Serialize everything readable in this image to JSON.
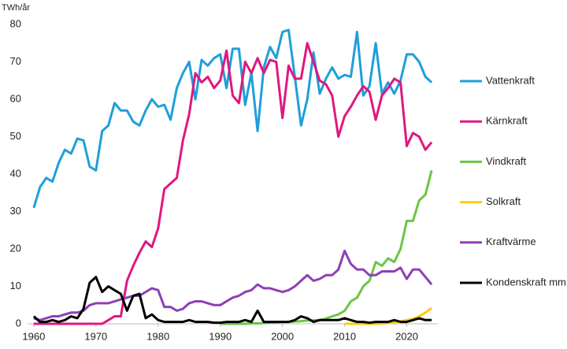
{
  "chart_data": {
    "type": "line",
    "y_label": "TWh/år",
    "x": [
      1960,
      1961,
      1962,
      1963,
      1964,
      1965,
      1966,
      1967,
      1968,
      1969,
      1970,
      1971,
      1972,
      1973,
      1974,
      1975,
      1976,
      1977,
      1978,
      1979,
      1980,
      1981,
      1982,
      1983,
      1984,
      1985,
      1986,
      1987,
      1988,
      1989,
      1990,
      1991,
      1992,
      1993,
      1994,
      1995,
      1996,
      1997,
      1998,
      1999,
      2000,
      2001,
      2002,
      2003,
      2004,
      2005,
      2006,
      2007,
      2008,
      2009,
      2010,
      2011,
      2012,
      2013,
      2014,
      2015,
      2016,
      2017,
      2018,
      2019,
      2020,
      2021,
      2022,
      2023,
      2024
    ],
    "xlim": [
      1959,
      2025
    ],
    "xticks": [
      1960,
      1970,
      1980,
      1990,
      2000,
      2010,
      2020
    ],
    "ylim": [
      0,
      80
    ],
    "yticks": [
      0,
      10,
      20,
      30,
      40,
      50,
      60,
      70,
      80
    ],
    "legend": "right",
    "series": [
      {
        "name": "Vattenkraft",
        "color": "#1e9fda",
        "values": [
          31,
          36.5,
          39,
          38,
          43,
          46.5,
          45.5,
          49.5,
          49,
          42,
          41,
          51.5,
          53,
          59,
          57,
          57,
          54,
          53,
          57,
          60,
          58,
          58.5,
          54.5,
          63,
          67,
          70,
          60,
          70.5,
          69,
          71,
          72,
          63,
          73.5,
          73.5,
          58.5,
          67,
          51.5,
          68.5,
          74,
          71,
          78,
          78.5,
          66,
          53,
          60,
          72.5,
          61.5,
          65.5,
          68.5,
          65.5,
          66.5,
          66,
          78,
          61,
          63.5,
          75,
          61.5,
          64.5,
          61.5,
          65,
          72,
          72,
          70,
          66,
          64.5
        ]
      },
      {
        "name": "Kärnkraft",
        "color": "#e0177f",
        "values": [
          0,
          0,
          0,
          0,
          0,
          0,
          0,
          0,
          0,
          0,
          0,
          0,
          1,
          2,
          2,
          11.5,
          15.5,
          19,
          22,
          20.5,
          25.5,
          36,
          37.5,
          39,
          49,
          56,
          67,
          64.5,
          66,
          63,
          65,
          73,
          61,
          59,
          70,
          67,
          71,
          67,
          70.5,
          70,
          55,
          69,
          65.5,
          65.5,
          75,
          70,
          65,
          64,
          61,
          50,
          55.5,
          58,
          61,
          63.5,
          62,
          54.5,
          61,
          63,
          65.5,
          64.5,
          47.5,
          51,
          50,
          46.5,
          48.5
        ]
      },
      {
        "name": "Vindkraft",
        "color": "#6cc644",
        "values": [
          null,
          null,
          null,
          null,
          null,
          null,
          null,
          null,
          null,
          null,
          null,
          null,
          null,
          null,
          null,
          null,
          null,
          null,
          null,
          null,
          null,
          null,
          null,
          null,
          null,
          null,
          null,
          null,
          null,
          null,
          0,
          0,
          0,
          0,
          0,
          0.1,
          0.1,
          0.2,
          0.3,
          0.4,
          0.5,
          0.5,
          0.6,
          0.7,
          0.9,
          0.9,
          1,
          1.4,
          2,
          2.5,
          3.5,
          6,
          7,
          10,
          11.5,
          16.5,
          15.5,
          17.5,
          16.5,
          20,
          27.5,
          27.5,
          33,
          34.5,
          41
        ]
      },
      {
        "name": "Solkraft",
        "color": "#ffcc00",
        "values": [
          null,
          null,
          null,
          null,
          null,
          null,
          null,
          null,
          null,
          null,
          null,
          null,
          null,
          null,
          null,
          null,
          null,
          null,
          null,
          null,
          null,
          null,
          null,
          null,
          null,
          null,
          null,
          null,
          null,
          null,
          null,
          null,
          null,
          null,
          null,
          null,
          null,
          null,
          null,
          null,
          null,
          null,
          null,
          null,
          null,
          null,
          null,
          null,
          null,
          null,
          0,
          0,
          0,
          0,
          0,
          0,
          0.1,
          0.2,
          0.4,
          0.7,
          1,
          1.3,
          2,
          3,
          4.2
        ]
      },
      {
        "name": "Kraftvärme",
        "color": "#8e3fb4",
        "values": [
          1.5,
          1,
          1.5,
          2,
          2,
          2.5,
          3,
          3,
          3.5,
          5,
          5.5,
          5.5,
          5.5,
          6,
          6.5,
          7,
          7.5,
          7.5,
          8.5,
          9.5,
          9,
          4.5,
          4.5,
          3.5,
          4,
          5.5,
          6,
          6,
          5.5,
          5,
          5,
          6,
          7,
          7.5,
          8.5,
          9,
          10.5,
          9.5,
          9.5,
          9,
          8.5,
          9,
          10,
          11.5,
          13,
          11.5,
          12,
          13,
          13,
          14.5,
          19.5,
          16,
          14.5,
          14.5,
          13,
          13,
          14,
          14,
          14,
          15,
          12,
          14.5,
          14.5,
          12.5,
          10.5
        ]
      },
      {
        "name": "Kondenskraft mm",
        "color": "#000000",
        "values": [
          2,
          0.5,
          0.5,
          1,
          0.5,
          1,
          2,
          1.5,
          4,
          11,
          12.5,
          8.5,
          10,
          9,
          8,
          3.5,
          7.5,
          8,
          1.5,
          2.5,
          1,
          0.5,
          0.5,
          0.5,
          0.5,
          1,
          0.5,
          0.5,
          0.5,
          0.3,
          0.3,
          0.5,
          0.5,
          0.5,
          1,
          0.5,
          3.5,
          0.5,
          0.5,
          0.5,
          0.5,
          0.5,
          1,
          2,
          1.5,
          0.5,
          1,
          1,
          1,
          1,
          1.5,
          1,
          0.5,
          0.5,
          0.3,
          0.5,
          0.5,
          0.5,
          1,
          0.5,
          0.5,
          1,
          1.5,
          1,
          1
        ]
      }
    ]
  }
}
